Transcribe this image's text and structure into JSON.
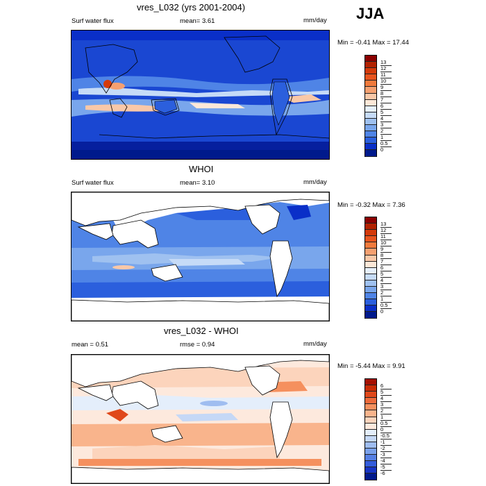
{
  "season": "JJA",
  "panels": [
    {
      "title": "vres_L032 (yrs 2001-2004)",
      "left_label": "Surf water flux",
      "mean": "mean=   3.61",
      "units": "mm/day",
      "minmax": "Min =  -0.41 Max =  17.44"
    },
    {
      "title": "WHOI",
      "left_label": "Surf water flux",
      "mean": "mean=   3.10",
      "units": "mm/day",
      "minmax": "Min =  -0.32 Max =   7.36"
    },
    {
      "title": "vres_L032 - WHOI",
      "left_label": "mean =   0.51",
      "mean": "rmse =   0.94",
      "units": "mm/day",
      "minmax": "Min =  -5.44 Max =   9.91"
    }
  ],
  "colorbar_abs": {
    "labels": [
      "13",
      "12",
      "11",
      "10",
      "9",
      "8",
      "7",
      "6",
      "5",
      "4",
      "3",
      "2",
      "1",
      "0.5",
      "0"
    ],
    "colors": [
      "#8b0000",
      "#b22200",
      "#d43a0a",
      "#e8541e",
      "#f07a3c",
      "#f5a070",
      "#f9c8a8",
      "#fde8d8",
      "#e6f0fb",
      "#c6dbf7",
      "#9fc1f0",
      "#79a6ec",
      "#4f84e6",
      "#2b5fdd",
      "#0a2fc8",
      "#001a8c"
    ]
  },
  "colorbar_diff": {
    "labels": [
      "6",
      "5",
      "4",
      "3",
      "2",
      "1",
      "0.5",
      "0",
      "-0.5",
      "-1",
      "-2",
      "-3",
      "-4",
      "-5",
      "-6"
    ],
    "colors": [
      "#a51000",
      "#c92c05",
      "#e0481a",
      "#ee6a3a",
      "#f5905e",
      "#f9b48c",
      "#fcd4bc",
      "#fde9dd",
      "#e4eefb",
      "#c5d8f6",
      "#9fbdf0",
      "#7aa1eb",
      "#5680e4",
      "#335cdb",
      "#1734c4",
      "#001a8c"
    ]
  }
}
